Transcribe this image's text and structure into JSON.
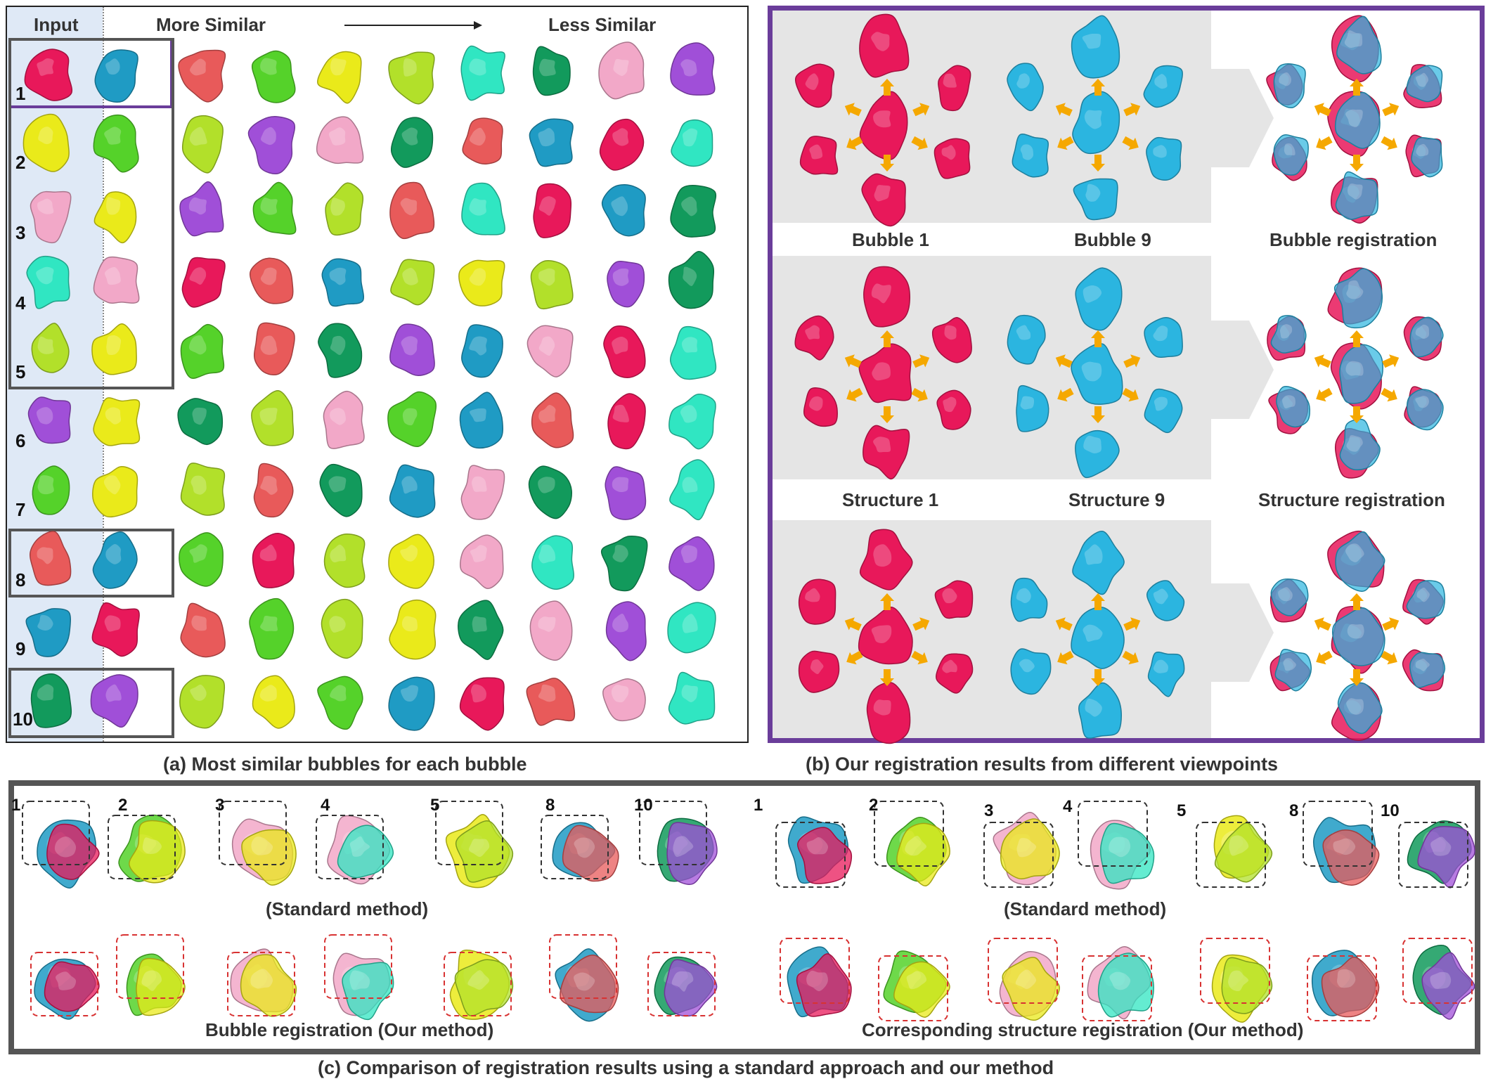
{
  "panel_a": {
    "header_input": "Input",
    "header_more": "More Similar",
    "header_less": "Less Similar",
    "row_labels": [
      "1",
      "2",
      "3",
      "4",
      "5",
      "6",
      "7",
      "8",
      "9",
      "10"
    ],
    "caption": "(a) Most similar bubbles for each bubble",
    "grid_colors": [
      [
        "#e8185a",
        "#1f9bc4",
        "#e85a5a",
        "#55d22a",
        "#eaea1a",
        "#b2e02a",
        "#30e6c2",
        "#129a5c",
        "#f2a8c8",
        "#a04fd8"
      ],
      [
        "#eaea1a",
        "#55d22a",
        "#b2e02a",
        "#a04fd8",
        "#f2a8c8",
        "#129a5c",
        "#e85a5a",
        "#1f9bc4",
        "#e8185a",
        "#30e6c2"
      ],
      [
        "#f2a8c8",
        "#eaea1a",
        "#a04fd8",
        "#55d22a",
        "#b2e02a",
        "#e85a5a",
        "#30e6c2",
        "#e8185a",
        "#1f9bc4",
        "#129a5c"
      ],
      [
        "#30e6c2",
        "#f2a8c8",
        "#e8185a",
        "#e85a5a",
        "#1f9bc4",
        "#b2e02a",
        "#eaea1a",
        "#b2e02a",
        "#a04fd8",
        "#129a5c"
      ],
      [
        "#b2e02a",
        "#eaea1a",
        "#55d22a",
        "#e85a5a",
        "#129a5c",
        "#a04fd8",
        "#1f9bc4",
        "#f2a8c8",
        "#e8185a",
        "#30e6c2"
      ],
      [
        "#a04fd8",
        "#eaea1a",
        "#129a5c",
        "#b2e02a",
        "#f2a8c8",
        "#55d22a",
        "#1f9bc4",
        "#e85a5a",
        "#e8185a",
        "#30e6c2"
      ],
      [
        "#55d22a",
        "#eaea1a",
        "#b2e02a",
        "#e85a5a",
        "#129a5c",
        "#1f9bc4",
        "#f2a8c8",
        "#129a5c",
        "#a04fd8",
        "#30e6c2"
      ],
      [
        "#e85a5a",
        "#1f9bc4",
        "#55d22a",
        "#e8185a",
        "#b2e02a",
        "#eaea1a",
        "#f2a8c8",
        "#30e6c2",
        "#129a5c",
        "#a04fd8"
      ],
      [
        "#1f9bc4",
        "#e8185a",
        "#e85a5a",
        "#55d22a",
        "#b2e02a",
        "#eaea1a",
        "#129a5c",
        "#f2a8c8",
        "#a04fd8",
        "#30e6c2"
      ],
      [
        "#129a5c",
        "#a04fd8",
        "#b2e02a",
        "#eaea1a",
        "#55d22a",
        "#1f9bc4",
        "#e8185a",
        "#e85a5a",
        "#f2a8c8",
        "#30e6c2"
      ]
    ]
  },
  "panel_b": {
    "labels": [
      "Bubble 1",
      "Bubble 9",
      "Bubble registration",
      "Structure 1",
      "Structure 9",
      "Structure registration"
    ],
    "caption": "(b) Our registration results from different viewpoints",
    "color_bubble_1": "#e8185a",
    "color_bubble_9": "#2bb5e0",
    "arrow_color": "#f5a800"
  },
  "panel_c": {
    "left_numbers": [
      "1",
      "2",
      "3",
      "4",
      "5",
      "8",
      "10"
    ],
    "right_numbers": [
      "1",
      "2",
      "3",
      "4",
      "5",
      "8",
      "10"
    ],
    "standard_label": "(Standard method)",
    "bubble_reg_label": "Bubble registration (Our method)",
    "structure_reg_label": "Corresponding structure registration (Our method)",
    "caption": "(c) Comparison of registration results using a standard approach and our method",
    "pair_colors": [
      [
        "#e8185a",
        "#1f9bc4"
      ],
      [
        "#eaea1a",
        "#55d22a"
      ],
      [
        "#eaea1a",
        "#f2a8c8"
      ],
      [
        "#30e6c2",
        "#f2a8c8"
      ],
      [
        "#b2e02a",
        "#eaea1a"
      ],
      [
        "#e85a5a",
        "#1f9bc4"
      ],
      [
        "#a04fd8",
        "#129a5c"
      ]
    ]
  }
}
